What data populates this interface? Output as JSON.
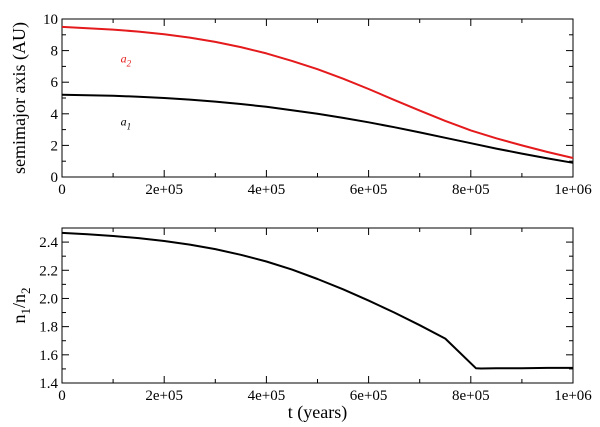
{
  "chart_data": [
    {
      "type": "line",
      "xlabel": "",
      "ylabel": "semimajor axis (AU)",
      "xlim": [
        0,
        1000000
      ],
      "ylim": [
        0,
        10
      ],
      "x_ticks": [
        0,
        200000,
        400000,
        600000,
        800000,
        1000000
      ],
      "x_tick_labels": [
        "0",
        "2e+05",
        "4e+05",
        "6e+05",
        "8e+05",
        "1e+06"
      ],
      "y_ticks": [
        0,
        2,
        4,
        6,
        8,
        10
      ],
      "y_tick_labels": [
        "0",
        "2",
        "4",
        "6",
        "8",
        "10"
      ],
      "grid": false,
      "series": [
        {
          "color": "#e41a1c",
          "x": [
            0,
            50000,
            100000,
            150000,
            200000,
            250000,
            300000,
            350000,
            400000,
            450000,
            500000,
            550000,
            600000,
            650000,
            700000,
            750000,
            800000,
            850000,
            900000,
            950000,
            1000000
          ],
          "y": [
            9.5,
            9.42,
            9.33,
            9.2,
            9.04,
            8.82,
            8.55,
            8.22,
            7.82,
            7.35,
            6.82,
            6.22,
            5.57,
            4.88,
            4.2,
            3.55,
            2.95,
            2.45,
            2.0,
            1.58,
            1.2
          ]
        },
        {
          "color": "#000000",
          "x": [
            0,
            50000,
            100000,
            150000,
            200000,
            250000,
            300000,
            350000,
            400000,
            450000,
            500000,
            550000,
            600000,
            650000,
            700000,
            750000,
            800000,
            850000,
            900000,
            950000,
            1000000
          ],
          "y": [
            5.2,
            5.18,
            5.14,
            5.08,
            5.0,
            4.9,
            4.77,
            4.62,
            4.44,
            4.23,
            4.0,
            3.74,
            3.46,
            3.15,
            2.82,
            2.48,
            2.14,
            1.8,
            1.48,
            1.18,
            0.9
          ]
        }
      ],
      "annotations": [
        {
          "text": "a",
          "sub": "2",
          "x": 150000,
          "y": 7.5,
          "color": "#e41a1c"
        },
        {
          "text": "a",
          "sub": "1",
          "x": 150000,
          "y": 3.5,
          "color": "#000000"
        }
      ]
    },
    {
      "type": "line",
      "xlabel": "t (years)",
      "ylabel": "n",
      "ylabel_sub1": "1",
      "ylabel_mid": "/n",
      "ylabel_sub2": "2",
      "xlim": [
        0,
        1000000
      ],
      "ylim": [
        1.4,
        2.5
      ],
      "x_ticks": [
        0,
        200000,
        400000,
        600000,
        800000,
        1000000
      ],
      "x_tick_labels": [
        "0",
        "2e+05",
        "4e+05",
        "6e+05",
        "8e+05",
        "1e+06"
      ],
      "y_ticks": [
        1.4,
        1.6,
        1.8,
        2.0,
        2.2,
        2.4
      ],
      "y_tick_labels": [
        "1.4",
        "1.6",
        "1.8",
        "2.0",
        "2.2",
        "2.4"
      ],
      "grid": false,
      "series": [
        {
          "color": "#000000",
          "x": [
            0,
            50000,
            100000,
            150000,
            200000,
            250000,
            300000,
            350000,
            400000,
            450000,
            500000,
            550000,
            600000,
            650000,
            700000,
            750000,
            810000,
            820000,
            850000,
            900000,
            950000,
            1000000
          ],
          "y": [
            2.465,
            2.455,
            2.443,
            2.428,
            2.408,
            2.382,
            2.35,
            2.31,
            2.262,
            2.205,
            2.138,
            2.065,
            1.985,
            1.9,
            1.81,
            1.715,
            1.505,
            1.503,
            1.505,
            1.505,
            1.507,
            1.507
          ]
        }
      ],
      "annotations": []
    }
  ]
}
